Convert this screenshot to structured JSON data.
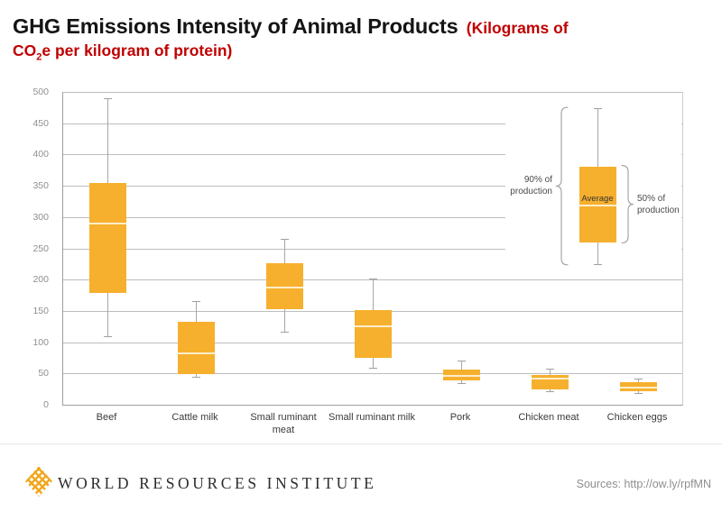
{
  "header": {
    "title_black": "GHG Emissions Intensity of Animal Products",
    "subtitle_line1": "(Kilograms of",
    "subtitle_line2_co": "CO",
    "subtitle_line2_sub": "2",
    "subtitle_line2_rest": "e per kilogram of protein)"
  },
  "chart_data": {
    "type": "boxplot",
    "title": "GHG Emissions Intensity of Animal Products (Kilograms of CO2e per kilogram of protein)",
    "ylim": [
      0,
      500
    ],
    "ytick_interval": 50,
    "yticks": [
      0,
      50,
      100,
      150,
      200,
      250,
      300,
      350,
      400,
      450,
      500
    ],
    "grid": true,
    "categories": [
      "Beef",
      "Cattle milk",
      "Small ruminant meat",
      "Small ruminant milk",
      "Pork",
      "Chicken meat",
      "Chicken eggs"
    ],
    "boxes": [
      {
        "category": "Beef",
        "min": 110,
        "q1": 178,
        "median": 290,
        "q3": 355,
        "max": 490
      },
      {
        "category": "Cattle milk",
        "min": 44,
        "q1": 49,
        "median": 82,
        "q3": 132,
        "max": 165
      },
      {
        "category": "Small ruminant meat",
        "min": 116,
        "q1": 153,
        "median": 188,
        "q3": 226,
        "max": 265
      },
      {
        "category": "Small ruminant milk",
        "min": 59,
        "q1": 75,
        "median": 125,
        "q3": 151,
        "max": 202
      },
      {
        "category": "Pork",
        "min": 35,
        "q1": 39,
        "median": 46,
        "q3": 56,
        "max": 71
      },
      {
        "category": "Chicken meat",
        "min": 21,
        "q1": 25,
        "median": 42,
        "q3": 48,
        "max": 58
      },
      {
        "category": "Chicken eggs",
        "min": 19,
        "q1": 21,
        "median": 28,
        "q3": 36,
        "max": 42
      }
    ],
    "legend": {
      "position": "top-right",
      "sample_box": {
        "min": 225,
        "q1": 260,
        "median": 318,
        "q3": 381,
        "max": 474
      },
      "left_label_lines": [
        "90% of",
        "production"
      ],
      "average_label": "Average",
      "right_label_lines": [
        "50% of",
        "production"
      ]
    },
    "colors": {
      "box_fill": "#F6B02D",
      "median_line": "#FBEDCB",
      "whisker": "#a8a8a8",
      "gridline": "#bdbdbd",
      "title_accent": "#C00000",
      "logo_gold": "#F2A71E"
    }
  },
  "footer": {
    "org_name": "WORLD RESOURCES INSTITUTE",
    "sources": "Sources: http://ow.ly/rpfMN"
  }
}
